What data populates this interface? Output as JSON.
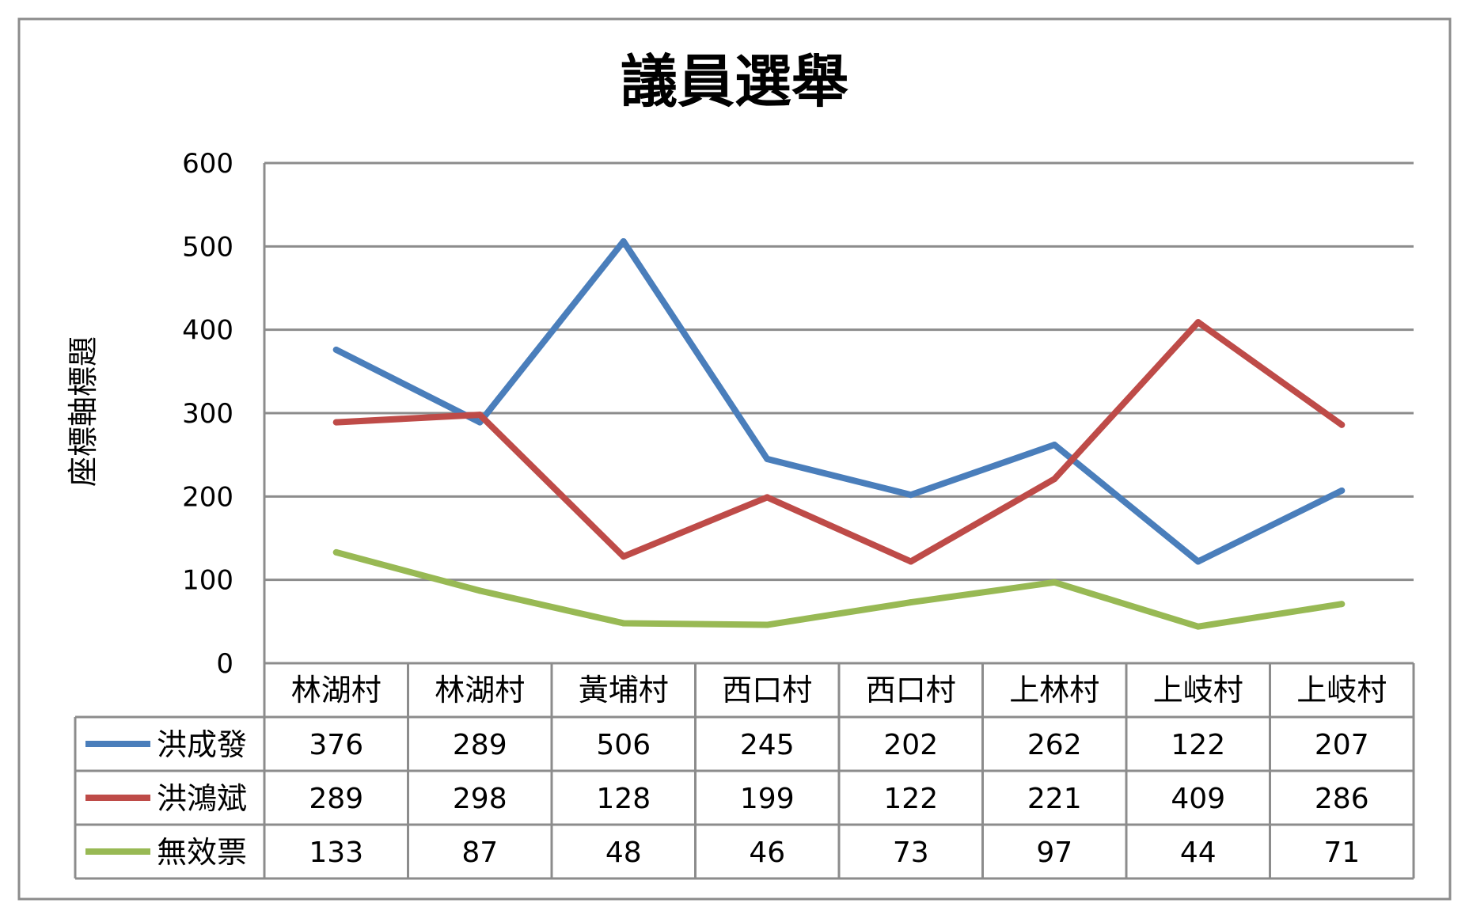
{
  "chart_data": {
    "type": "line",
    "title": "議員選舉",
    "xlabel": "",
    "ylabel": "座標軸標題",
    "ylim": [
      0,
      600
    ],
    "yticks": [
      0,
      100,
      200,
      300,
      400,
      500,
      600
    ],
    "grid": true,
    "legend": "data-table-left",
    "categories": [
      "林湖村",
      "林湖村",
      "黃埔村",
      "西口村",
      "西口村",
      "上林村",
      "上岐村",
      "上岐村"
    ],
    "series": [
      {
        "name": "洪成發",
        "color": "#4a7ebb",
        "values": [
          376,
          289,
          506,
          245,
          202,
          262,
          122,
          207
        ]
      },
      {
        "name": "洪鴻斌",
        "color": "#be4b48",
        "values": [
          289,
          298,
          128,
          199,
          122,
          221,
          409,
          286
        ]
      },
      {
        "name": "無效票",
        "color": "#98b954",
        "values": [
          133,
          87,
          48,
          46,
          73,
          97,
          44,
          71
        ]
      }
    ]
  }
}
